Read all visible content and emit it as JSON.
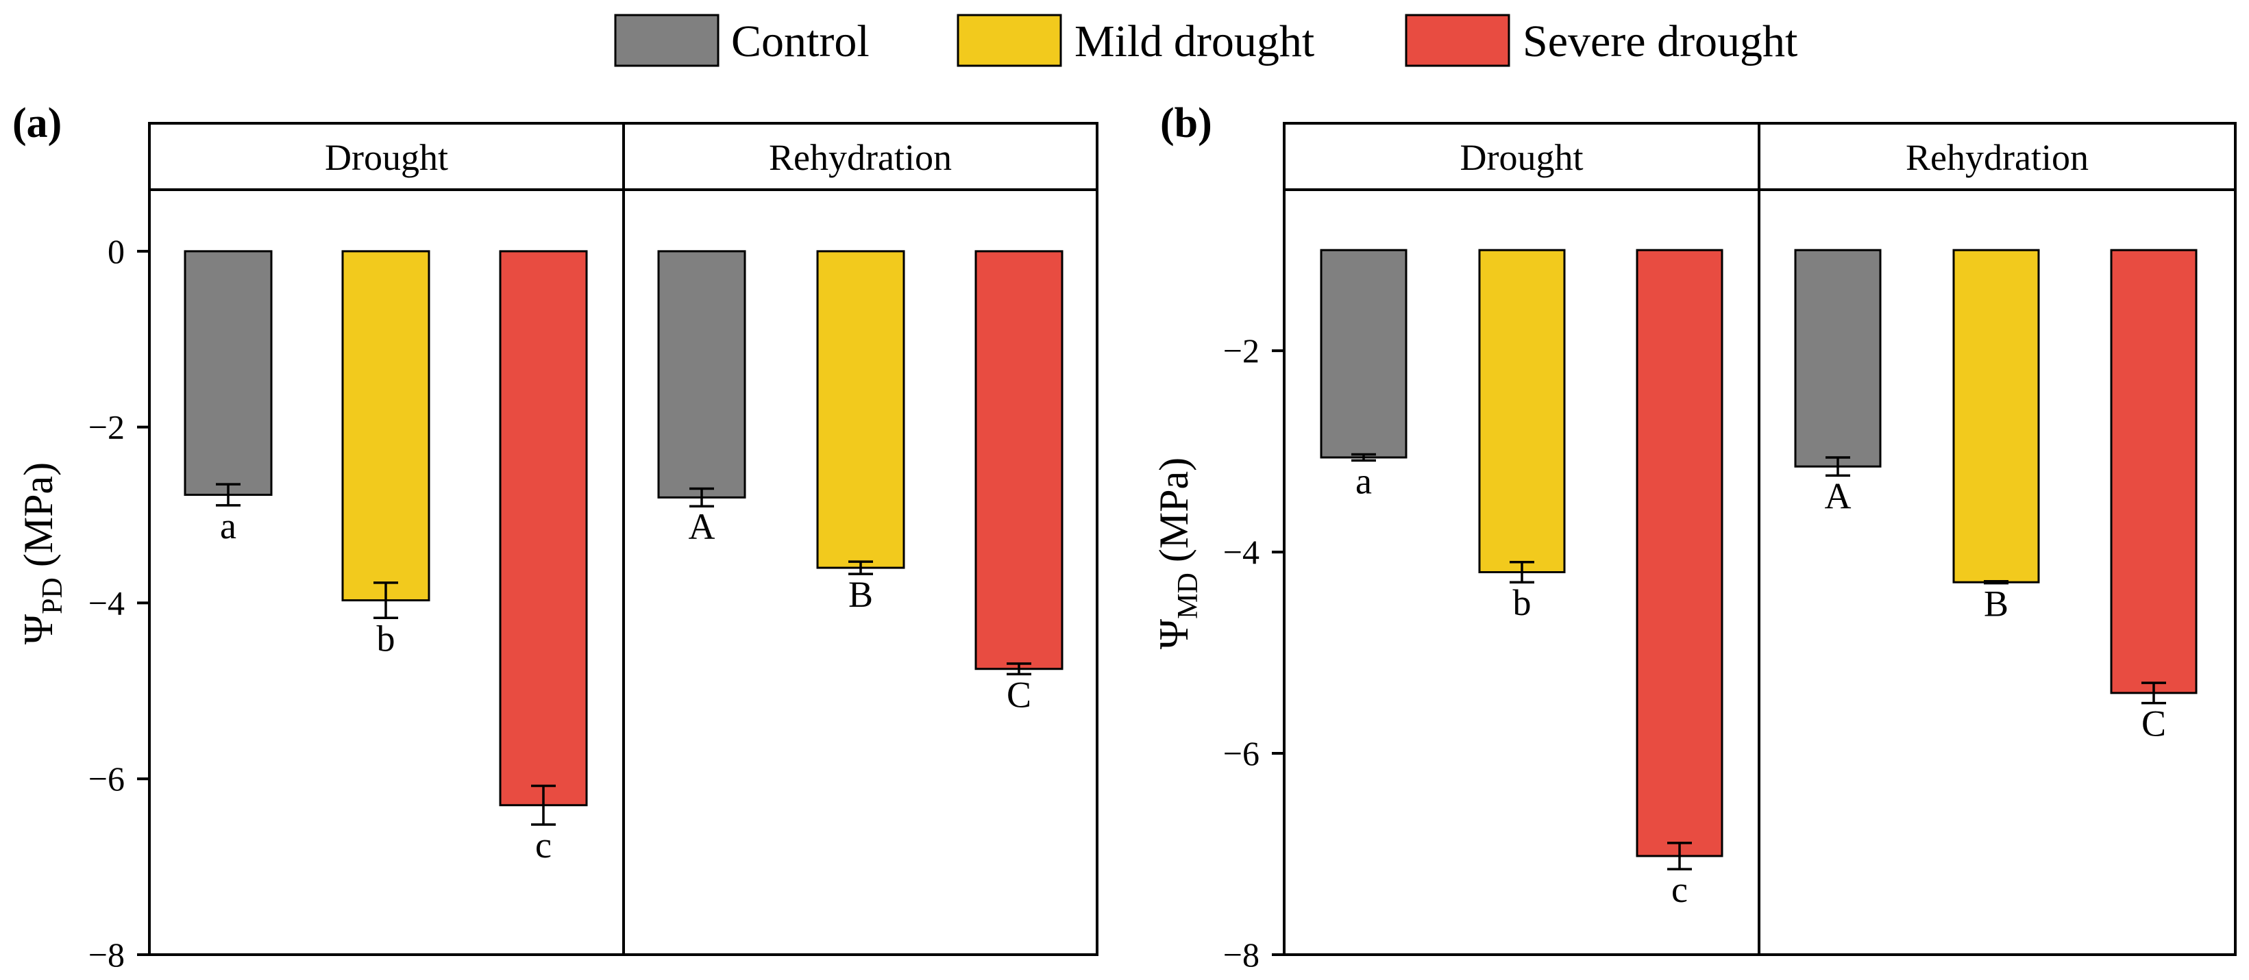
{
  "legend": [
    {
      "label": "Control",
      "color": "#808080"
    },
    {
      "label": "Mild drought",
      "color": "#F2CA1D"
    },
    {
      "label": "Severe drought",
      "color": "#E84C41"
    }
  ],
  "chart_data": [
    {
      "type": "bar",
      "panel_tag": "(a)",
      "ylabel": {
        "symbol": "Ψ",
        "subscript": "PD",
        "unit": " (MPa)"
      },
      "ylim": [
        -8,
        0.7
      ],
      "yticks": [
        0,
        -2,
        -4,
        -6,
        -8
      ],
      "ytick_labels": [
        "0",
        "−2",
        "−4",
        "−6",
        "−8"
      ],
      "facets": [
        {
          "label": "Drought",
          "categories": [
            "Control",
            "Mild drought",
            "Severe drought"
          ],
          "values": [
            -2.77,
            -3.97,
            -6.3
          ],
          "errors": [
            0.12,
            0.2,
            0.22
          ],
          "letters": [
            "a",
            "b",
            "c"
          ]
        },
        {
          "label": "Rehydration",
          "categories": [
            "Control",
            "Mild drought",
            "Severe drought"
          ],
          "values": [
            -2.8,
            -3.6,
            -4.75
          ],
          "errors": [
            0.1,
            0.07,
            0.06
          ],
          "letters": [
            "A",
            "B",
            "C"
          ]
        }
      ]
    },
    {
      "type": "bar",
      "panel_tag": "(b)",
      "ylabel": {
        "symbol": "Ψ",
        "subscript": "MD",
        "unit": " (MPa)"
      },
      "ylim": [
        -8,
        -0.4
      ],
      "baseline": -1,
      "yticks": [
        -2,
        -4,
        -6,
        -8
      ],
      "ytick_labels": [
        "−2",
        "−4",
        "−6",
        "−8"
      ],
      "facets": [
        {
          "label": "Drought",
          "categories": [
            "Control",
            "Mild drought",
            "Severe drought"
          ],
          "values": [
            -3.06,
            -4.2,
            -7.02
          ],
          "errors": [
            0.03,
            0.1,
            0.13
          ],
          "letters": [
            "a",
            "b",
            "c"
          ]
        },
        {
          "label": "Rehydration",
          "categories": [
            "Control",
            "Mild drought",
            "Severe drought"
          ],
          "values": [
            -3.15,
            -4.3,
            -5.4
          ],
          "errors": [
            0.09,
            0.01,
            0.1
          ],
          "letters": [
            "A",
            "B",
            "C"
          ]
        }
      ]
    }
  ]
}
